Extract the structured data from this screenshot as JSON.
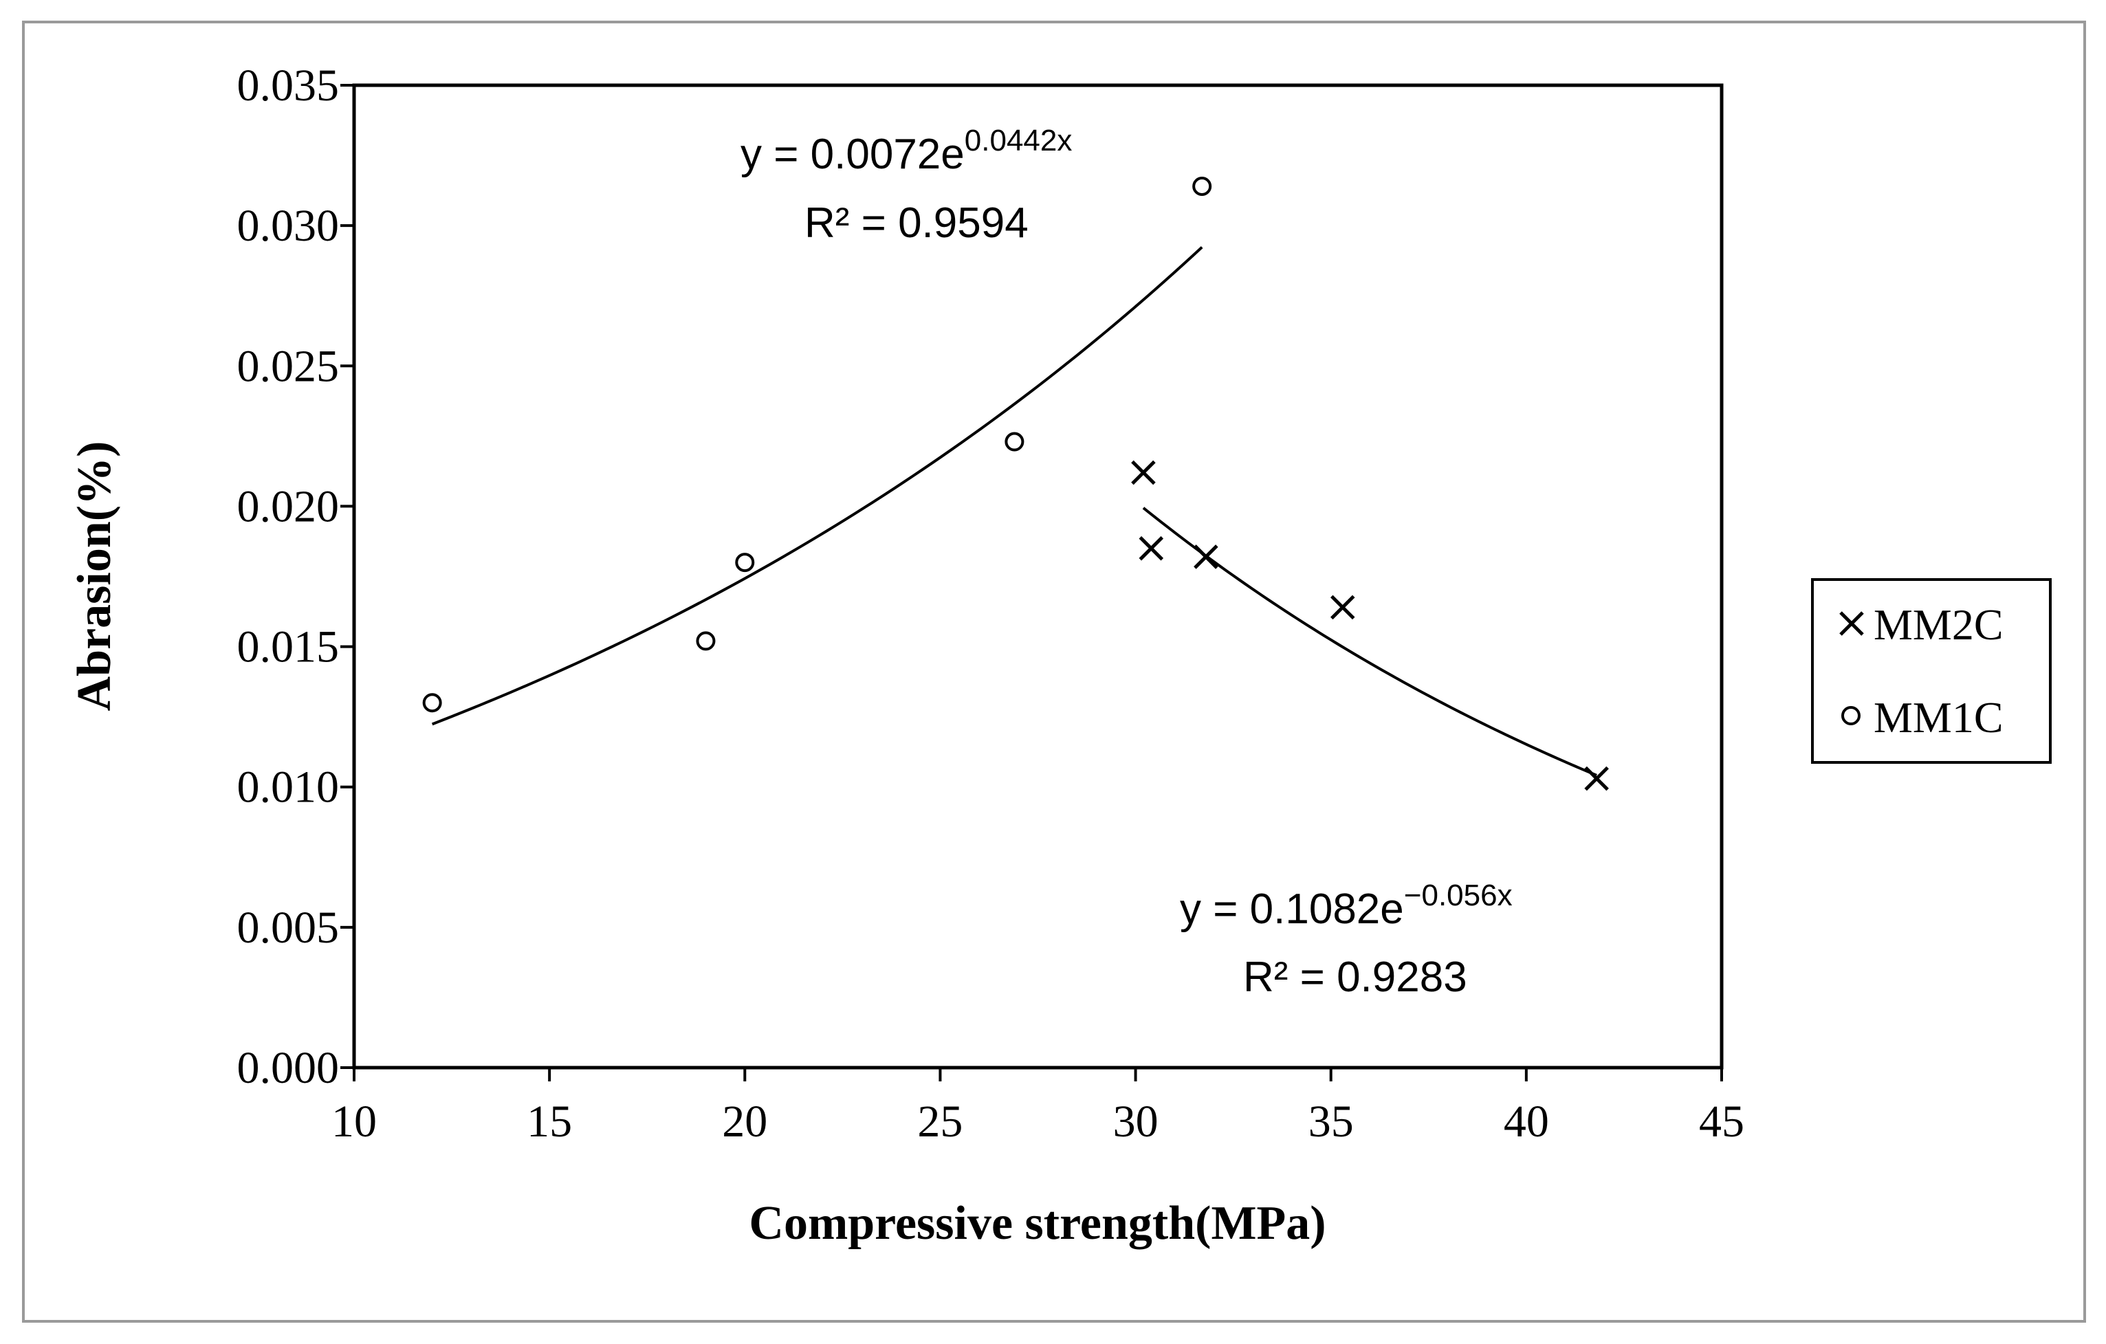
{
  "chart_data": {
    "type": "scatter",
    "title": "",
    "xlabel": "Compressive strength(MPa)",
    "ylabel": "Abrasion(%)",
    "xlim": [
      10,
      45
    ],
    "ylim": [
      0,
      0.035
    ],
    "x_ticks": [
      "10",
      "15",
      "20",
      "25",
      "30",
      "35",
      "40",
      "45"
    ],
    "y_ticks": [
      "0.000",
      "0.005",
      "0.010",
      "0.015",
      "0.020",
      "0.025",
      "0.030",
      "0.035"
    ],
    "grid": false,
    "legend_position": "right",
    "series": [
      {
        "name": "MM2C",
        "marker": "x",
        "x": [
          30.2,
          30.4,
          31.8,
          35.3,
          41.8
        ],
        "y": [
          0.0212,
          0.0185,
          0.0182,
          0.0164,
          0.0103
        ],
        "trendline": {
          "type": "exponential",
          "a": 0.1082,
          "b": -0.056,
          "x_range": [
            30.2,
            41.8
          ],
          "equation_prefix": "y = 0.1082e",
          "equation_exponent": "−0.056x",
          "r2_label": "R² = 0.9283"
        }
      },
      {
        "name": "MM1C",
        "marker": "circle",
        "x": [
          12,
          19,
          20,
          26.9,
          31.7
        ],
        "y": [
          0.013,
          0.0152,
          0.018,
          0.0223,
          0.0314
        ],
        "trendline": {
          "type": "exponential",
          "a": 0.0072,
          "b": 0.0442,
          "x_range": [
            12,
            31.7
          ],
          "equation_prefix": "y = 0.0072e",
          "equation_exponent": "0.0442x",
          "r2_label": "R² = 0.9594"
        }
      }
    ]
  }
}
